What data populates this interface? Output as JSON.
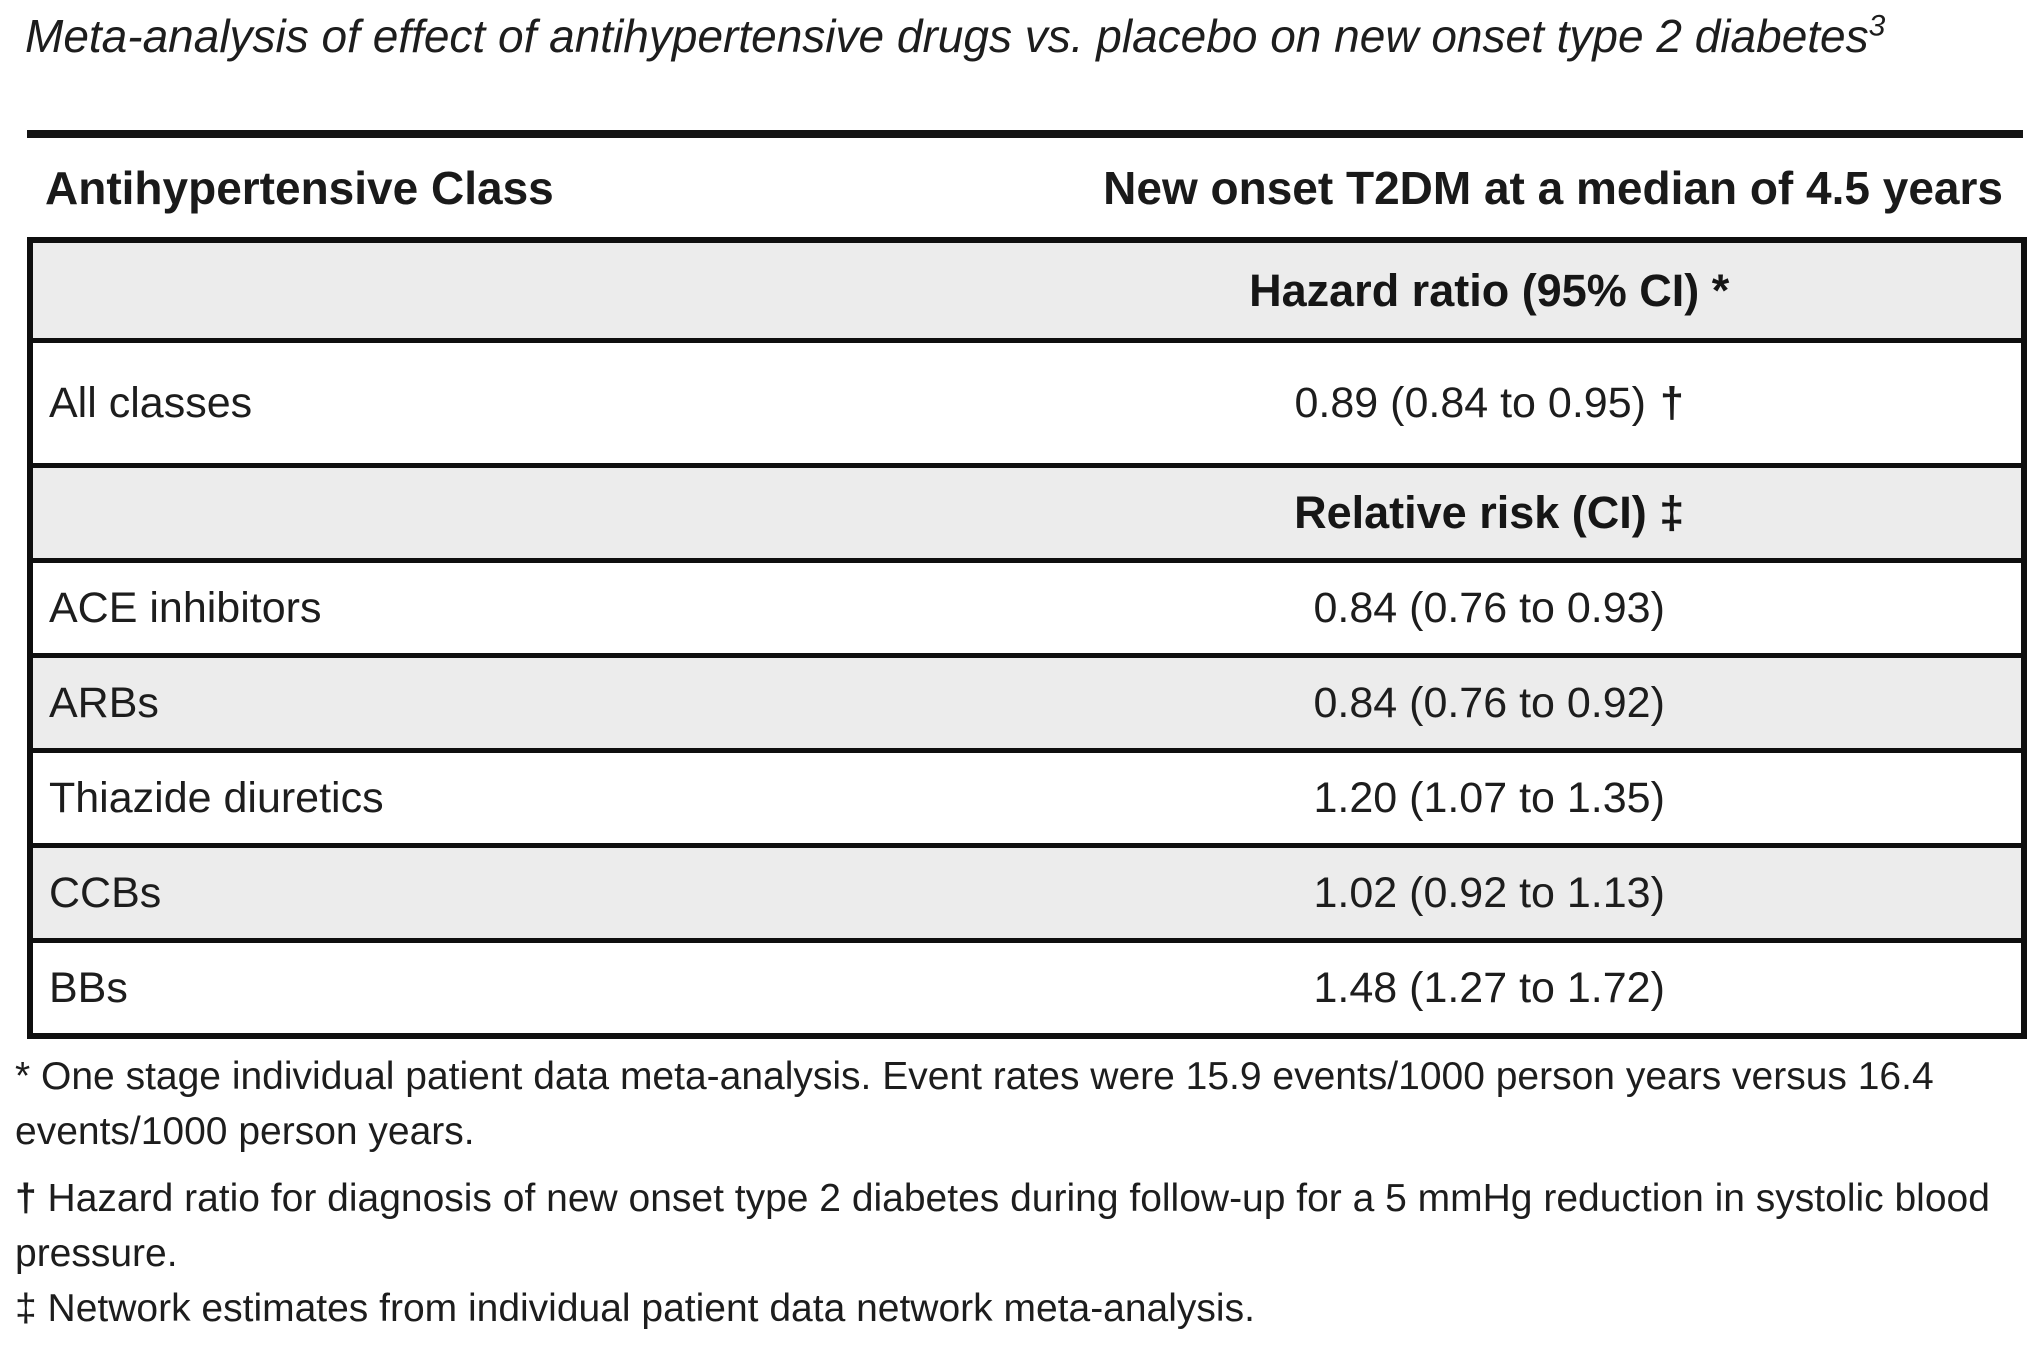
{
  "title": {
    "text": "Meta-analysis of effect of antihypertensive drugs vs. placebo on new onset type 2 diabetes",
    "superscript": "3"
  },
  "header": {
    "left": "Antihypertensive Class",
    "right": "New onset T2DM at a median of 4.5 years"
  },
  "table": {
    "rows": [
      {
        "label": "",
        "value": "Hazard ratio (95% CI) *",
        "suffix": ""
      },
      {
        "label": "All classes",
        "value": "0.89 (0.84 to 0.95)",
        "suffix": "†"
      },
      {
        "label": "",
        "value": "Relative risk (CI) ‡",
        "suffix": ""
      },
      {
        "label": "ACE inhibitors",
        "value": "0.84 (0.76 to 0.93)",
        "suffix": ""
      },
      {
        "label": "ARBs",
        "value": "0.84 (0.76 to 0.92)",
        "suffix": ""
      },
      {
        "label": "Thiazide diuretics",
        "value": "1.20 (1.07 to 1.35)",
        "suffix": ""
      },
      {
        "label": "CCBs",
        "value": "1.02 (0.92 to 1.13)",
        "suffix": ""
      },
      {
        "label": "BBs",
        "value": "1.48 (1.27 to 1.72)",
        "suffix": ""
      }
    ]
  },
  "footnotes": [
    {
      "symbol": "*",
      "text": "One stage individual patient data meta-analysis. Event rates were 15.9 events/1000 person years versus 16.4 events/1000 person years."
    },
    {
      "symbol": "†",
      "text": "Hazard ratio for diagnosis of new onset type 2 diabetes during follow-up for a 5 mmHg reduction in systolic blood pressure."
    },
    {
      "symbol": "‡",
      "text": "Network estimates from individual patient data network meta-analysis."
    }
  ],
  "colors": {
    "shaded_row": "#ececec",
    "border": "#0f0f0f",
    "text": "#1d1d1d"
  }
}
